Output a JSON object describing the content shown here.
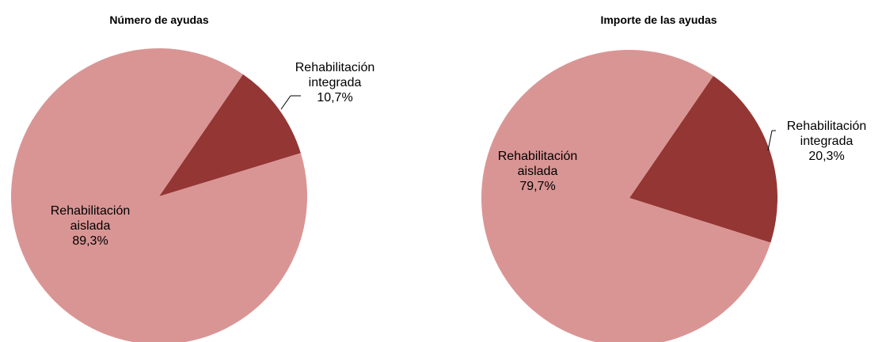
{
  "chart_data": [
    {
      "type": "pie",
      "title": "Número de ayudas",
      "categories": [
        "Rehabilitación integrada",
        "Rehabilitación aislada"
      ],
      "values": [
        10.7,
        89.3
      ],
      "value_labels": [
        "10,7%",
        "89,3%"
      ],
      "colors": [
        "#943634",
        "#d99594"
      ]
    },
    {
      "type": "pie",
      "title": "Importe de las ayudas",
      "categories": [
        "Rehabilitación integrada",
        "Rehabilitación aislada"
      ],
      "values": [
        20.3,
        79.7
      ],
      "value_labels": [
        "20,3%",
        "79,7%"
      ],
      "colors": [
        "#943634",
        "#d99594"
      ]
    }
  ]
}
